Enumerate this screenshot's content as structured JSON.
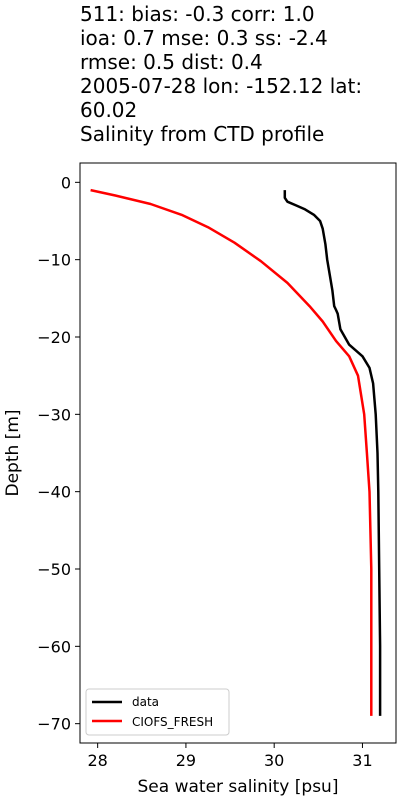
{
  "title_lines": [
    "511: bias: -0.3  corr: 1.0",
    "ioa: 0.7  mse: 0.3  ss: -2.4",
    "rmse: 0.5  dist: 0.4",
    "2005-07-28 lon: -152.12 lat:",
    "60.02",
    "Salinity from CTD profile"
  ],
  "chart_data": {
    "type": "line",
    "xlabel": "Sea water salinity [psu]",
    "ylabel": "Depth [m]",
    "xlim": [
      27.8,
      31.38
    ],
    "ylim": [
      -72.5,
      2.5
    ],
    "xticks": [
      28,
      29,
      30,
      31
    ],
    "yticks": [
      0,
      -10,
      -20,
      -30,
      -40,
      -50,
      -60,
      -70
    ],
    "xtick_labels": [
      "28",
      "29",
      "30",
      "31"
    ],
    "ytick_labels": [
      "0",
      "−10",
      "−20",
      "−30",
      "−40",
      "−50",
      "−60",
      "−70"
    ],
    "grid": false,
    "legend_position": "lower-left",
    "series": [
      {
        "name": "data",
        "color": "#000000",
        "x": [
          30.12,
          30.12,
          30.15,
          30.25,
          30.35,
          30.45,
          30.52,
          30.55,
          30.58,
          30.6,
          30.63,
          30.66,
          30.68,
          30.7,
          30.72,
          30.75,
          30.85,
          31.0,
          31.08,
          31.12,
          31.15,
          31.17,
          31.18,
          31.19,
          31.2,
          31.2
        ],
        "y": [
          -1,
          -2,
          -2.5,
          -3,
          -3.5,
          -4.2,
          -5,
          -6,
          -8,
          -10,
          -12,
          -14,
          -16,
          -16.5,
          -17,
          -19,
          -21,
          -22.5,
          -24,
          -26,
          -30,
          -35,
          -40,
          -50,
          -60,
          -69
        ]
      },
      {
        "name": "CIOFS_FRESH",
        "color": "#ff0000",
        "x": [
          27.92,
          28.2,
          28.6,
          28.95,
          29.25,
          29.55,
          29.85,
          30.15,
          30.4,
          30.55,
          30.7,
          30.85,
          30.95,
          31.02,
          31.05,
          31.08,
          31.09,
          31.1,
          31.1,
          31.1
        ],
        "y": [
          -1,
          -1.7,
          -2.8,
          -4.2,
          -5.8,
          -7.8,
          -10.2,
          -13,
          -16,
          -18,
          -20.5,
          -22.5,
          -25,
          -30,
          -35,
          -40,
          -45,
          -50,
          -60,
          -69
        ]
      }
    ]
  }
}
